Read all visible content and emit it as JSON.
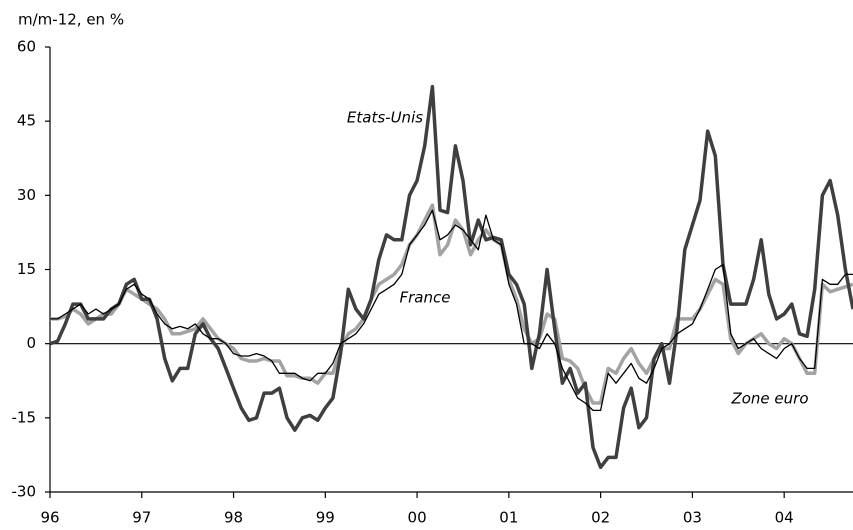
{
  "chart_data": {
    "type": "line",
    "y_label": "m/m-12, en %",
    "x": [
      1996,
      1996.083,
      1996.167,
      1996.25,
      1996.333,
      1996.417,
      1996.5,
      1996.583,
      1996.667,
      1996.75,
      1996.833,
      1996.917,
      1997,
      1997.083,
      1997.167,
      1997.25,
      1997.333,
      1997.417,
      1997.5,
      1997.583,
      1997.667,
      1997.75,
      1997.833,
      1997.917,
      1998,
      1998.083,
      1998.167,
      1998.25,
      1998.333,
      1998.417,
      1998.5,
      1998.583,
      1998.667,
      1998.75,
      1998.833,
      1998.917,
      1999,
      1999.083,
      1999.167,
      1999.25,
      1999.333,
      1999.417,
      1999.5,
      1999.583,
      1999.667,
      1999.75,
      1999.833,
      1999.917,
      2000,
      2000.083,
      2000.167,
      2000.25,
      2000.333,
      2000.417,
      2000.5,
      2000.583,
      2000.667,
      2000.75,
      2000.833,
      2000.917,
      2001,
      2001.083,
      2001.167,
      2001.25,
      2001.333,
      2001.417,
      2001.5,
      2001.583,
      2001.667,
      2001.75,
      2001.833,
      2001.917,
      2002,
      2002.083,
      2002.167,
      2002.25,
      2002.333,
      2002.417,
      2002.5,
      2002.583,
      2002.667,
      2002.75,
      2002.833,
      2002.917,
      2003,
      2003.083,
      2003.167,
      2003.25,
      2003.333,
      2003.417,
      2003.5,
      2003.583,
      2003.667,
      2003.75,
      2003.833,
      2003.917,
      2004,
      2004.083,
      2004.167,
      2004.25,
      2004.333,
      2004.417,
      2004.5,
      2004.583,
      2004.667,
      2004.75
    ],
    "series": [
      {
        "name": "Zone euro",
        "color": "#a3a3a3",
        "width": 3.5,
        "values": [
          5,
          5,
          5.5,
          7,
          6,
          4,
          5,
          6,
          6,
          8,
          11,
          10,
          9,
          8,
          7,
          5,
          2,
          2,
          2.5,
          3,
          5,
          3,
          1,
          0,
          -1,
          -3,
          -3.5,
          -3.5,
          -3,
          -3.5,
          -3.5,
          -6.5,
          -6.5,
          -7,
          -7,
          -8,
          -6,
          -6,
          -1,
          2,
          3,
          5,
          9,
          12,
          13,
          14,
          16,
          20,
          22,
          25,
          28,
          18,
          20,
          25,
          23,
          18,
          21,
          23,
          21,
          20,
          13,
          9,
          3,
          0,
          1,
          6,
          5,
          -3,
          -3.5,
          -5,
          -9,
          -12,
          -12,
          -5,
          -6,
          -3,
          -1,
          -4,
          -6,
          -3,
          -1,
          -1,
          5,
          5,
          5,
          7,
          10,
          13,
          12,
          1,
          -2,
          0,
          1,
          2,
          0,
          -1,
          1,
          0,
          -3,
          -6,
          -6,
          12,
          10.5,
          11,
          11.5,
          12
        ]
      },
      {
        "name": "Etats-Unis",
        "color": "#3f3f3f",
        "width": 3.5,
        "values": [
          0,
          0.5,
          4,
          8,
          8,
          5,
          5,
          5,
          7,
          8,
          12,
          13,
          9,
          9,
          5,
          -3,
          -7.5,
          -5,
          -5,
          2,
          4,
          1,
          -1,
          -5,
          -9,
          -13,
          -15.5,
          -15,
          -10,
          -10,
          -9,
          -15,
          -17.5,
          -15,
          -14.5,
          -15.5,
          -13,
          -11,
          -2,
          11,
          7,
          5,
          9,
          17,
          22,
          21,
          21,
          30,
          33,
          40,
          52,
          27,
          26.5,
          40,
          33,
          20,
          25,
          21,
          21.5,
          21,
          14,
          12,
          8,
          -5,
          2,
          15,
          3,
          -8,
          -5,
          -10,
          -8,
          -21,
          -25,
          -23,
          -23,
          -13,
          -9,
          -17,
          -15,
          -3,
          0,
          -8,
          3,
          19,
          24,
          29,
          43,
          38,
          16,
          8,
          8,
          8,
          13,
          21,
          10,
          5,
          6,
          8,
          2,
          1.5,
          11,
          30,
          33,
          26,
          15,
          7
        ]
      },
      {
        "name": "France",
        "color": "#000000",
        "width": 1.3,
        "values": [
          5,
          5,
          6,
          7,
          8,
          6,
          7,
          6,
          7,
          8,
          11,
          12,
          10,
          9,
          6,
          4,
          3,
          3.5,
          3,
          4,
          2,
          1,
          1,
          0,
          -2,
          -2.5,
          -2.5,
          -2,
          -2.5,
          -3.5,
          -6,
          -6,
          -6,
          -7,
          -7.5,
          -6,
          -6,
          -4,
          0,
          1,
          2,
          4,
          7,
          10,
          11,
          12,
          14,
          20,
          22,
          24,
          27,
          21,
          22,
          24,
          23,
          21,
          19,
          26,
          21,
          20,
          12,
          8,
          0,
          0,
          -1,
          2,
          0,
          -5,
          -8,
          -11,
          -12,
          -13.5,
          -13.5,
          -6,
          -8,
          -6,
          -4,
          -7,
          -8,
          -5,
          -1,
          0,
          2,
          3,
          4,
          7,
          11,
          15,
          16,
          2,
          -1,
          0,
          1,
          -1,
          -2,
          -3,
          -1,
          0,
          -3,
          -5,
          -5,
          13,
          12,
          12,
          14,
          14
        ]
      }
    ],
    "xlim": [
      1996,
      2004.75
    ],
    "xticks": [
      {
        "value": 1996,
        "label": "96"
      },
      {
        "value": 1997,
        "label": "97"
      },
      {
        "value": 1998,
        "label": "98"
      },
      {
        "value": 1999,
        "label": "99"
      },
      {
        "value": 2000,
        "label": "00"
      },
      {
        "value": 2001,
        "label": "01"
      },
      {
        "value": 2002,
        "label": "02"
      },
      {
        "value": 2003,
        "label": "03"
      },
      {
        "value": 2004,
        "label": "04"
      }
    ],
    "ylim": [
      -30,
      60
    ],
    "yticks": [
      60,
      45,
      30,
      15,
      0,
      -15,
      -30
    ],
    "zero_line": true
  }
}
